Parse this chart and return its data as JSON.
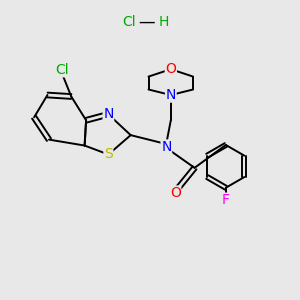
{
  "background_color": "#e8e8e8",
  "atom_colors": {
    "N": "#0000ff",
    "O": "#ff0000",
    "S": "#bbbb00",
    "Cl": "#00aa00",
    "F": "#ff00ff",
    "C": "#000000"
  },
  "bond_color": "#000000",
  "font_size_atoms": 10,
  "font_size_hcl": 10,
  "hcl_color": "#00aa00"
}
